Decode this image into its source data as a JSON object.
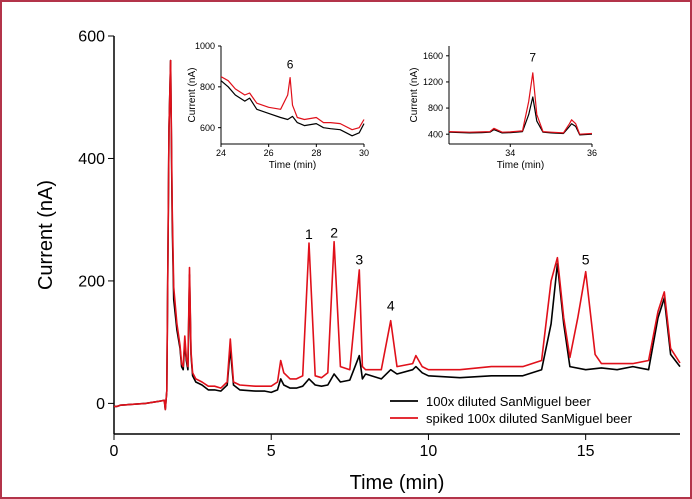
{
  "chart_data": [
    {
      "type": "line",
      "xlabel": "Time (min)",
      "ylabel": "Current (nA)",
      "xlim": [
        0,
        18
      ],
      "ylim": [
        -50,
        600
      ],
      "xticks": [
        0,
        5,
        10,
        15
      ],
      "yticks": [
        0,
        200,
        400,
        600
      ],
      "grid": false,
      "legend_position": "bottom-right",
      "peak_labels": [
        {
          "label": "1",
          "x": 6.2,
          "y": 262
        },
        {
          "label": "2",
          "x": 7.0,
          "y": 264
        },
        {
          "label": "3",
          "x": 7.8,
          "y": 220
        },
        {
          "label": "4",
          "x": 8.8,
          "y": 145
        },
        {
          "label": "5",
          "x": 15.0,
          "y": 220
        }
      ],
      "series": [
        {
          "name": "100x diluted SanMiguel beer",
          "color": "#000000",
          "x": [
            0,
            0.1,
            0.2,
            1.0,
            1.5,
            1.6,
            1.63,
            1.68,
            1.75,
            1.8,
            1.85,
            1.9,
            2.0,
            2.1,
            2.15,
            2.2,
            2.25,
            2.3,
            2.35,
            2.4,
            2.45,
            2.5,
            2.6,
            2.8,
            3.0,
            3.2,
            3.4,
            3.6,
            3.7,
            3.8,
            4.0,
            4.5,
            4.8,
            5.0,
            5.2,
            5.3,
            5.4,
            5.6,
            5.8,
            6.0,
            6.2,
            6.4,
            6.6,
            6.8,
            7.0,
            7.2,
            7.5,
            7.8,
            7.9,
            8.0,
            8.5,
            8.8,
            9.0,
            9.5,
            9.6,
            9.8,
            10.0,
            11.0,
            12.0,
            13.0,
            13.6,
            13.9,
            14.1,
            14.3,
            14.5,
            15.0,
            15.5,
            16.0,
            16.5,
            17.0,
            17.3,
            17.5,
            17.7,
            18.0
          ],
          "y": [
            -5,
            -5,
            -3,
            0,
            4,
            5,
            -10,
            20,
            450,
            560,
            300,
            170,
            120,
            90,
            60,
            55,
            100,
            70,
            55,
            210,
            80,
            45,
            35,
            30,
            22,
            22,
            20,
            30,
            90,
            30,
            22,
            20,
            20,
            18,
            22,
            40,
            30,
            25,
            25,
            28,
            40,
            30,
            28,
            30,
            48,
            35,
            38,
            78,
            40,
            48,
            40,
            55,
            48,
            55,
            60,
            50,
            45,
            42,
            45,
            45,
            55,
            130,
            228,
            130,
            60,
            55,
            58,
            55,
            60,
            55,
            140,
            172,
            80,
            60
          ]
        },
        {
          "name": "spiked 100x diluted SanMiguel beer",
          "color": "#e0101a",
          "x": [
            0,
            0.1,
            0.2,
            1.0,
            1.5,
            1.6,
            1.63,
            1.68,
            1.75,
            1.8,
            1.85,
            1.9,
            2.0,
            2.1,
            2.15,
            2.2,
            2.25,
            2.3,
            2.35,
            2.4,
            2.45,
            2.5,
            2.6,
            2.8,
            3.0,
            3.2,
            3.4,
            3.6,
            3.7,
            3.8,
            4.0,
            4.5,
            4.8,
            5.0,
            5.2,
            5.3,
            5.4,
            5.6,
            5.8,
            6.0,
            6.2,
            6.4,
            6.6,
            6.8,
            7.0,
            7.2,
            7.5,
            7.8,
            7.9,
            8.0,
            8.5,
            8.8,
            9.0,
            9.5,
            9.6,
            9.8,
            10.0,
            11.0,
            12.0,
            13.0,
            13.6,
            13.9,
            14.1,
            14.3,
            14.5,
            14.75,
            15.0,
            15.3,
            15.5,
            16.0,
            16.5,
            17.0,
            17.3,
            17.5,
            17.7,
            18.0
          ],
          "y": [
            -5,
            -5,
            -3,
            0,
            4,
            5,
            -10,
            20,
            450,
            560,
            320,
            190,
            130,
            95,
            65,
            60,
            110,
            75,
            60,
            222,
            85,
            50,
            40,
            35,
            28,
            28,
            25,
            35,
            105,
            35,
            30,
            28,
            28,
            28,
            35,
            70,
            50,
            40,
            40,
            45,
            262,
            45,
            42,
            50,
            264,
            60,
            55,
            218,
            60,
            55,
            55,
            135,
            60,
            65,
            78,
            60,
            55,
            55,
            60,
            60,
            70,
            200,
            238,
            140,
            75,
            140,
            215,
            80,
            65,
            65,
            65,
            70,
            150,
            182,
            90,
            66
          ]
        }
      ]
    },
    {
      "type": "line",
      "xlabel": "Time (min)",
      "ylabel": "Current (nA)",
      "xlim": [
        24,
        30
      ],
      "ylim": [
        520,
        1000
      ],
      "xticks": [
        24,
        26,
        28,
        30
      ],
      "yticks": [
        600,
        800,
        1000
      ],
      "peak_labels": [
        {
          "label": "6",
          "x": 26.9,
          "y": 870
        }
      ],
      "series": [
        {
          "color": "#000000",
          "x": [
            24,
            24.3,
            24.6,
            25.0,
            25.2,
            25.5,
            26.0,
            26.5,
            26.8,
            27.0,
            27.2,
            27.5,
            28.0,
            28.3,
            28.6,
            29.0,
            29.5,
            29.8,
            30.0
          ],
          "y": [
            830,
            800,
            760,
            730,
            745,
            690,
            670,
            650,
            640,
            655,
            625,
            610,
            620,
            600,
            595,
            590,
            560,
            575,
            620
          ]
        },
        {
          "color": "#e0101a",
          "x": [
            24,
            24.3,
            24.6,
            25.0,
            25.2,
            25.5,
            26.0,
            26.5,
            26.8,
            26.9,
            27.0,
            27.2,
            27.5,
            28.0,
            28.3,
            28.6,
            29.0,
            29.5,
            29.8,
            30.0
          ],
          "y": [
            850,
            830,
            790,
            760,
            770,
            720,
            700,
            690,
            760,
            845,
            710,
            650,
            640,
            650,
            625,
            625,
            620,
            590,
            600,
            640
          ]
        }
      ]
    },
    {
      "type": "line",
      "xlabel": "Time (min)",
      "ylabel": "Current (nA)",
      "xlim": [
        32.5,
        36
      ],
      "ylim": [
        250,
        1750
      ],
      "xticks": [
        34,
        36
      ],
      "yticks": [
        400,
        800,
        1200,
        1600
      ],
      "peak_labels": [
        {
          "label": "7",
          "x": 34.55,
          "y": 1450
        }
      ],
      "series": [
        {
          "color": "#000000",
          "x": [
            32.5,
            33.0,
            33.3,
            33.5,
            33.6,
            33.8,
            34.0,
            34.3,
            34.45,
            34.55,
            34.65,
            34.8,
            35.0,
            35.3,
            35.45,
            35.5,
            35.6,
            35.7,
            36.0
          ],
          "y": [
            430,
            420,
            425,
            430,
            470,
            420,
            425,
            440,
            700,
            970,
            600,
            430,
            420,
            410,
            520,
            560,
            520,
            390,
            400
          ]
        },
        {
          "color": "#e0101a",
          "x": [
            32.5,
            33.0,
            33.3,
            33.5,
            33.6,
            33.8,
            34.0,
            34.3,
            34.45,
            34.55,
            34.65,
            34.8,
            35.0,
            35.3,
            35.45,
            35.5,
            35.6,
            35.7,
            36.0
          ],
          "y": [
            440,
            430,
            435,
            440,
            490,
            430,
            435,
            450,
            900,
            1340,
            700,
            440,
            430,
            420,
            560,
            620,
            560,
            400,
            410
          ]
        }
      ]
    }
  ]
}
